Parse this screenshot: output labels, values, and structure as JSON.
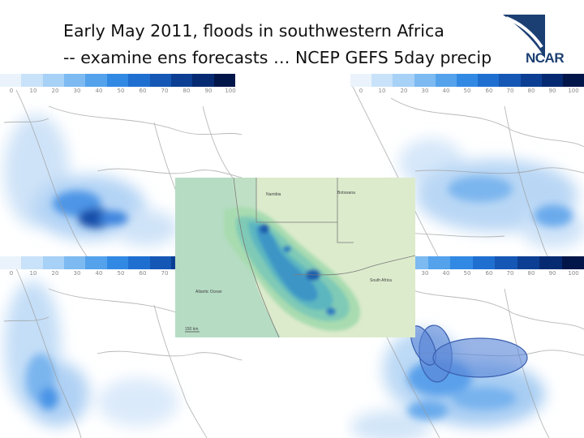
{
  "title": {
    "line1": "Early May 2011, floods in southwestern Africa",
    "line2": "-- examine ens forecasts … NCEP GEFS 5day precip"
  },
  "logo": {
    "text": "NCAR"
  },
  "colorbar": {
    "ticks": [
      "0",
      "10",
      "20",
      "30",
      "40",
      "50",
      "60",
      "70",
      "80",
      "90",
      "100"
    ],
    "colors": [
      "#eaf3fc",
      "#c8e2f9",
      "#a7d1f6",
      "#7cbaf1",
      "#54a2ec",
      "#3289e3",
      "#1f6fd1",
      "#1557b4",
      "#0c3f93",
      "#062a72",
      "#02164a"
    ]
  },
  "inset": {
    "labels": {
      "namibia": "Namibia",
      "botswana": "Botswana",
      "south_africa": "South Africa",
      "atlantic": "Atlantic Ocean",
      "scale": "150 km"
    }
  }
}
